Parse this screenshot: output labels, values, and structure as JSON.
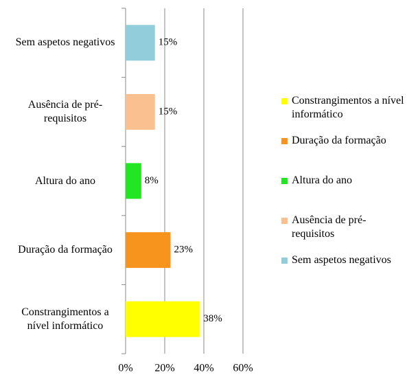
{
  "chart_data": {
    "type": "barh",
    "categories": [
      "Constrangimentos a nível informático",
      "Duração da formação",
      "Altura do ano",
      "Ausência de pré-requisitos",
      "Sem aspetos negativos"
    ],
    "values": [
      38,
      23,
      8,
      15,
      15
    ],
    "value_labels": [
      "38%",
      "23%",
      "8%",
      "15%",
      "15%"
    ],
    "colors": [
      "#ffff00",
      "#f7941d",
      "#22e622",
      "#fac090",
      "#92cddc"
    ],
    "xlim": [
      0,
      60
    ],
    "xticks": [
      {
        "value": 0,
        "label": "0%"
      },
      {
        "value": 20,
        "label": "20%"
      },
      {
        "value": 40,
        "label": "40%"
      },
      {
        "value": 60,
        "label": "60%"
      }
    ],
    "grid": true,
    "legend": "right"
  }
}
